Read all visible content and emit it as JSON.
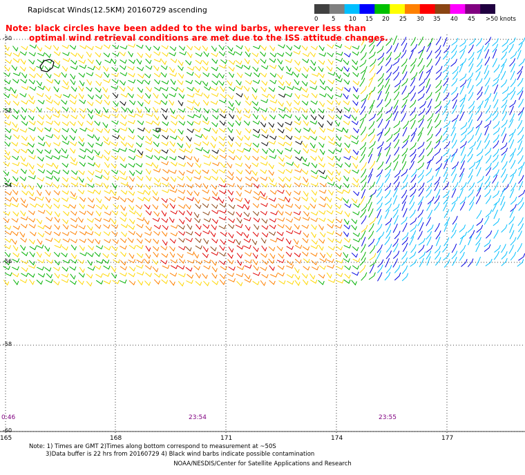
{
  "title": "Rapidscat Winds(12.5KM) 20160729 ascending",
  "note_line1": "Note: black circles have been added to the wind barbs, wherever less than",
  "note_line2": "optimal wind retrieval conditions are met due to the ISS attitude changes.",
  "colorbar": {
    "labels": [
      "0",
      "5",
      "10",
      "15",
      "20",
      "25",
      "30",
      "35",
      "40",
      "45",
      ">50 knots"
    ],
    "colors": [
      "#404040",
      "#808080",
      "#00bfff",
      "#0000ff",
      "#00c000",
      "#ffff00",
      "#ff8000",
      "#ff0000",
      "#8b4513",
      "#ff00ff",
      "#800080",
      "#200040"
    ]
  },
  "map": {
    "lon_labels": [
      "165",
      "168",
      "171",
      "174",
      "177"
    ],
    "lat_labels": [
      "-50",
      "-52",
      "-54",
      "-56",
      "-58",
      "-60"
    ],
    "time_labels": [
      "0:46",
      "23:54",
      "23:55"
    ]
  },
  "footnote_line1": "Note: 1) Times are GMT 2)Times along bottom correspond to measurement at ~50S",
  "footnote_line2": "3)Data buffer is 22 hrs from 20160729 4) Black wind barbs indicate possible contamination",
  "credit": "NOAA/NESDIS/Center for Satellite Applications and Research"
}
